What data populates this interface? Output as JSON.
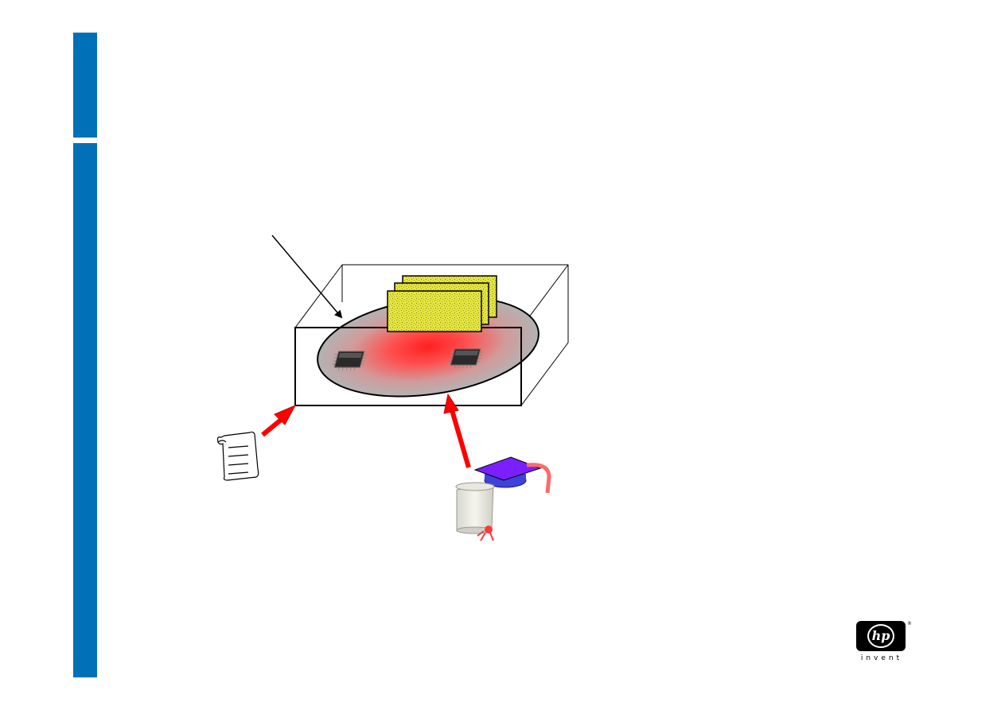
{
  "slide": {
    "accent_color": "#0071b9",
    "arrow_color": "#ff0000",
    "ellipse_color": "#b3b3b3",
    "card_color": "#e6e640",
    "mortarboard_color": "#7b1fff"
  },
  "diagram": {
    "icons": [
      "pointer-arrow-icon",
      "enclosure-box-icon",
      "trusted-zone-ellipse-icon",
      "document-card-icon",
      "microchip-icon",
      "policy-scroll-icon",
      "mortarboard-icon",
      "diploma-scroll-icon"
    ]
  },
  "logo": {
    "mark": "hp",
    "registered": "®",
    "tagline": "invent"
  }
}
